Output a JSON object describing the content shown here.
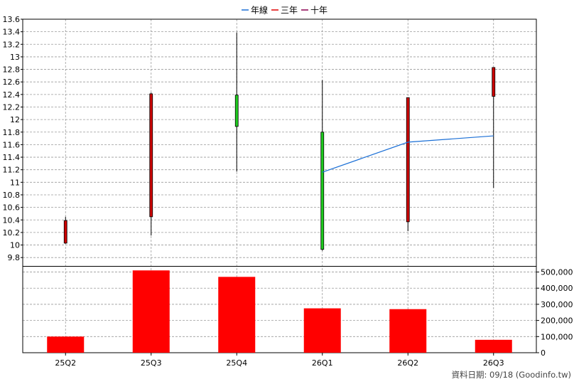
{
  "chart_data": {
    "type": "candlestick",
    "legend": [
      {
        "name": "年線",
        "color": "#1a6fd6"
      },
      {
        "name": "三年",
        "color": "#e00000"
      },
      {
        "name": "十年",
        "color": "#8b0050"
      }
    ],
    "categories": [
      "25Q2",
      "25Q3",
      "25Q4",
      "26Q1",
      "26Q2",
      "26Q3"
    ],
    "price_axis": {
      "ticks": [
        "9.8",
        "10",
        "10.2",
        "10.4",
        "10.6",
        "10.8",
        "11",
        "11.2",
        "11.4",
        "11.6",
        "11.8",
        "12",
        "12.2",
        "12.4",
        "12.6",
        "12.8",
        "13",
        "13.2",
        "13.4",
        "13.6"
      ],
      "ylim": [
        9.7,
        13.6
      ]
    },
    "candles": [
      {
        "open": 10.03,
        "close": 10.39,
        "high": 10.45,
        "low": 10.02,
        "color": "#cc0000"
      },
      {
        "open": 10.45,
        "close": 12.41,
        "high": 12.43,
        "low": 10.15,
        "color": "#cc0000"
      },
      {
        "open": 12.39,
        "close": 11.89,
        "high": 13.39,
        "low": 11.17,
        "color": "#1ecb1e"
      },
      {
        "open": 11.8,
        "close": 9.93,
        "high": 12.63,
        "low": 9.91,
        "color": "#1ecb1e"
      },
      {
        "open": 10.37,
        "close": 12.35,
        "high": 12.35,
        "low": 10.22,
        "color": "#cc0000"
      },
      {
        "open": 12.37,
        "close": 12.83,
        "high": 12.83,
        "low": 10.91,
        "color": "#cc0000"
      }
    ],
    "annual_line": {
      "name": "年線",
      "start_index": 3,
      "values": [
        11.16,
        11.64,
        11.74
      ]
    },
    "volume_axis": {
      "ticks": [
        "0",
        "100,000",
        "200,000",
        "300,000",
        "400,000",
        "500,000"
      ],
      "ylim": [
        0,
        520000
      ]
    },
    "volume": [
      100000,
      510000,
      470000,
      275000,
      270000,
      80000
    ],
    "volume_color": "#ff0000",
    "grid": true
  },
  "footer": {
    "credit": "資料日期: 09/18  (Goodinfo.tw)"
  }
}
